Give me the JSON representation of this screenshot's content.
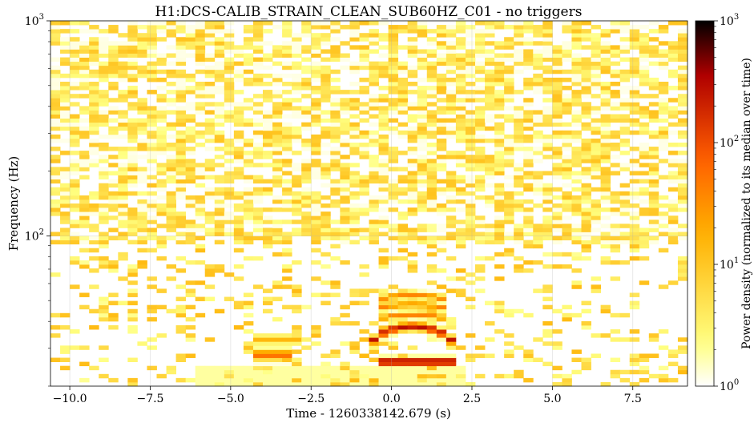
{
  "chart_data": {
    "type": "heatmap",
    "title": "H1:DCS-CALIB_STRAIN_CLEAN_SUB60HZ_C01 - no triggers",
    "xlabel": "Time - 1260338142.679 (s)",
    "ylabel": "Frequency (Hz)",
    "xlim": [
      -10.6,
      9.2
    ],
    "ylim": [
      20,
      1000
    ],
    "yscale": "log",
    "grid": true,
    "x_ticks": [
      {
        "value": -10.0,
        "label": "−10.0"
      },
      {
        "value": -7.5,
        "label": "−7.5"
      },
      {
        "value": -5.0,
        "label": "−5.0"
      },
      {
        "value": -2.5,
        "label": "−2.5"
      },
      {
        "value": 0.0,
        "label": "0.0"
      },
      {
        "value": 2.5,
        "label": "2.5"
      },
      {
        "value": 5.0,
        "label": "5.0"
      },
      {
        "value": 7.5,
        "label": "7.5"
      }
    ],
    "y_ticks": [
      {
        "value": 100,
        "base": "10",
        "exp": "2"
      },
      {
        "value": 1000,
        "base": "10",
        "exp": "3"
      }
    ],
    "colorbar": {
      "label": "Power density (normalized to its median over time)",
      "scale": "log",
      "range": [
        1,
        1000
      ],
      "ticks": [
        {
          "value": 1,
          "base": "10",
          "exp": "0"
        },
        {
          "value": 10,
          "base": "10",
          "exp": "1"
        },
        {
          "value": 100,
          "base": "10",
          "exp": "2"
        },
        {
          "value": 1000,
          "base": "10",
          "exp": "3"
        }
      ],
      "colormap": "afmhot_r",
      "colors": [
        "#ffffff",
        "#ffff80",
        "#ffb000",
        "#ff6000",
        "#b00000",
        "#000000"
      ]
    },
    "features": [
      {
        "name": "event_low_band",
        "t_start": -0.3,
        "t_end": 1.9,
        "freq": 26,
        "power": 800
      },
      {
        "name": "event_arc",
        "t_start": -0.8,
        "t_end": 2.1,
        "freq_peak": 38,
        "freq_edge": 26,
        "power": 300
      },
      {
        "name": "event_harmonics",
        "t_start": -0.5,
        "t_end": 1.8,
        "freqs": [
          43,
          48,
          53
        ],
        "power": 40
      },
      {
        "name": "precursor_band",
        "t_start": -4.3,
        "t_end": -3.0,
        "freq": 28,
        "power": 60
      },
      {
        "name": "precursor_arc",
        "t_start": -4.4,
        "t_end": -2.9,
        "freq": 33,
        "power": 15
      }
    ]
  }
}
